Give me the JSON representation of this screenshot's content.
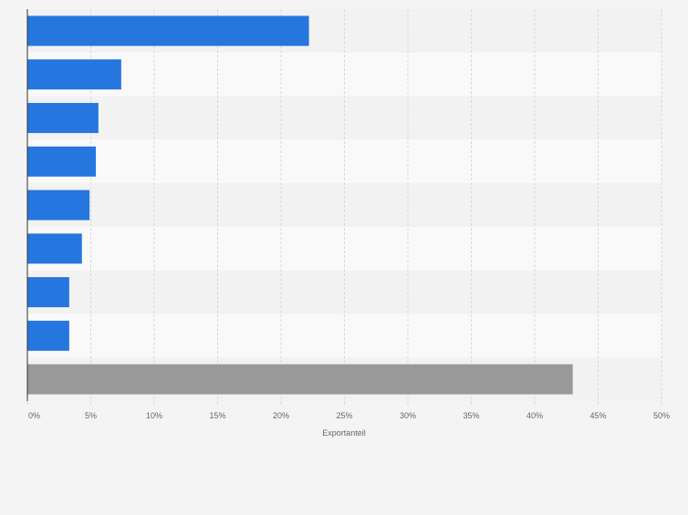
{
  "colors": {
    "page_background": "#f4f4f4",
    "band_dark": "#f2f2f2",
    "band_light": "#f9f9f9",
    "bar_blue": "#2576de",
    "bar_gray": "#999999",
    "grid": "#d9d9d9",
    "axis": "#333333",
    "tick_text": "#666666"
  },
  "chart_data": {
    "type": "bar",
    "orientation": "horizontal",
    "categories": [
      "",
      "",
      "",
      "",
      "",
      "",
      "",
      "",
      ""
    ],
    "values": [
      22.2,
      7.4,
      5.6,
      5.4,
      4.9,
      4.3,
      3.3,
      3.3,
      43.0
    ],
    "bar_colors": [
      "#2576de",
      "#2576de",
      "#2576de",
      "#2576de",
      "#2576de",
      "#2576de",
      "#2576de",
      "#2576de",
      "#999999"
    ],
    "xlim": [
      0,
      50
    ],
    "xticks": [
      0,
      5,
      10,
      15,
      20,
      25,
      30,
      35,
      40,
      45,
      50
    ],
    "xtick_labels": [
      "0%",
      "5%",
      "10%",
      "15%",
      "20%",
      "25%",
      "30%",
      "35%",
      "40%",
      "45%",
      "50%"
    ],
    "xlabel": "Exportanteil",
    "ylabel": "",
    "title": "",
    "grid": true,
    "legend": "none"
  }
}
